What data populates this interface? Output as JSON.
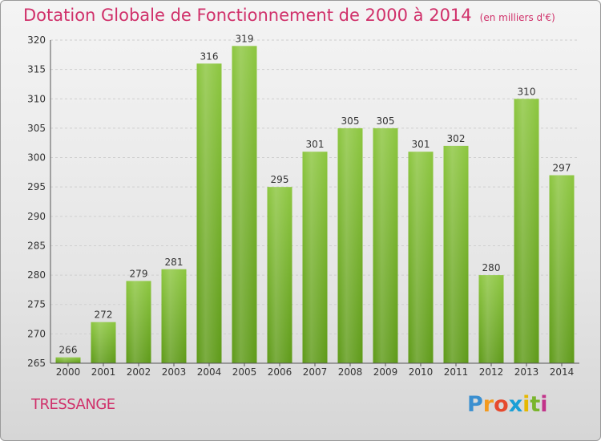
{
  "chart_data": {
    "type": "bar",
    "title": "Dotation Globale de Fonctionnement de 2000 à 2014",
    "unit_label": "(en milliers d'€)",
    "categories": [
      "2000",
      "2001",
      "2002",
      "2003",
      "2004",
      "2005",
      "2006",
      "2007",
      "2008",
      "2009",
      "2010",
      "2011",
      "2012",
      "2013",
      "2014"
    ],
    "values": [
      266,
      272,
      279,
      281,
      316,
      319,
      295,
      301,
      305,
      305,
      301,
      302,
      280,
      310,
      297
    ],
    "ylim": [
      265,
      320
    ],
    "yticks": [
      265,
      270,
      275,
      280,
      285,
      290,
      295,
      300,
      305,
      310,
      315,
      320
    ],
    "grid": true,
    "bar_color": "#7ab52c"
  },
  "footer": {
    "city": "TRESSANGE",
    "logo_letters": [
      {
        "ch": "P",
        "color": "#3a8fd0"
      },
      {
        "ch": "r",
        "color": "#f39a1e"
      },
      {
        "ch": "o",
        "color": "#e64a2e"
      },
      {
        "ch": "x",
        "color": "#1a9fd6"
      },
      {
        "ch": "i",
        "color": "#e6b800"
      },
      {
        "ch": "t",
        "color": "#7ab52c"
      },
      {
        "ch": "i",
        "color": "#c2338a"
      }
    ]
  }
}
